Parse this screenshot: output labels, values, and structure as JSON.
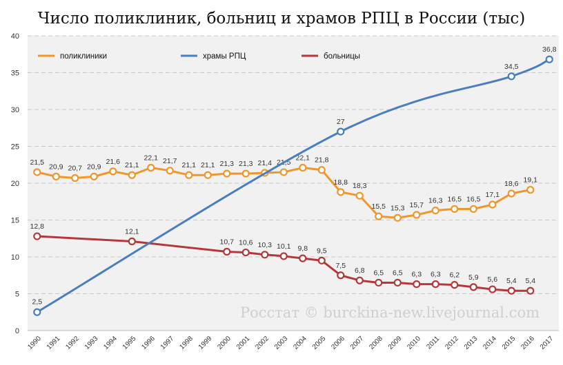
{
  "chart_data": {
    "type": "line",
    "title": "Число поликлиник, больниц и храмов РПЦ в России (тыс)",
    "watermark": "Росстат © burckina-new.livejournal.com",
    "ylim": [
      0,
      40
    ],
    "yticks": [
      "0",
      "5",
      "10",
      "15",
      "20",
      "25",
      "30",
      "35",
      "40"
    ],
    "grid": true,
    "legend_position": "top",
    "categories": [
      "1990",
      "1991",
      "1992",
      "1993",
      "1994",
      "1995",
      "1996",
      "1997",
      "1998",
      "1999",
      "2000",
      "2001",
      "2002",
      "2003",
      "2004",
      "2005",
      "2006",
      "2007",
      "2008",
      "2009",
      "2010",
      "2011",
      "2012",
      "2013",
      "2014",
      "2015",
      "2016",
      "2017"
    ],
    "series": [
      {
        "name": "поликлиники",
        "color": "#f0962a",
        "x": [
          "1990",
          "1991",
          "1992",
          "1993",
          "1994",
          "1995",
          "1996",
          "1997",
          "1998",
          "1999",
          "2000",
          "2001",
          "2002",
          "2003",
          "2004",
          "2005",
          "2006",
          "2007",
          "2008",
          "2009",
          "2010",
          "2011",
          "2012",
          "2013",
          "2014",
          "2015",
          "2016"
        ],
        "values": [
          21.5,
          20.9,
          20.7,
          20.9,
          21.6,
          21.1,
          22.1,
          21.7,
          21.1,
          21.1,
          21.3,
          21.3,
          21.4,
          21.5,
          22.1,
          21.8,
          18.8,
          18.3,
          15.5,
          15.3,
          15.7,
          16.3,
          16.5,
          16.5,
          17.1,
          18.6,
          19.1
        ],
        "labels": [
          "21,5",
          "20,9",
          "20,7",
          "20,9",
          "21,6",
          "21,1",
          "22,1",
          "21,7",
          "21,1",
          "21,1",
          "21,3",
          "21,3",
          "21,4",
          "21,5",
          "22,1",
          "21,8",
          "18,8",
          "18,3",
          "15,5",
          "15,3",
          "15,7",
          "16,3",
          "16,5",
          "16,5",
          "17,1",
          "18,6",
          "19,1"
        ]
      },
      {
        "name": "храмы РПЦ",
        "color": "#4a7ebf",
        "smooth": true,
        "x": [
          "1990",
          "2006",
          "2015",
          "2017"
        ],
        "values": [
          2.5,
          27,
          34.5,
          36.8
        ],
        "labels": [
          "2,5",
          "27",
          "34,5",
          "36,8"
        ]
      },
      {
        "name": "больницы",
        "color": "#b5373a",
        "x": [
          "1990",
          "1995",
          "2000",
          "2001",
          "2002",
          "2003",
          "2004",
          "2005",
          "2006",
          "2007",
          "2008",
          "2009",
          "2010",
          "2011",
          "2012",
          "2013",
          "2014",
          "2015",
          "2016"
        ],
        "values": [
          12.8,
          12.1,
          10.7,
          10.6,
          10.3,
          10.1,
          9.8,
          9.5,
          7.5,
          6.8,
          6.5,
          6.5,
          6.3,
          6.3,
          6.2,
          5.9,
          5.6,
          5.4,
          5.4
        ],
        "labels": [
          "12,8",
          "12,1",
          "10,7",
          "10,6",
          "10,3",
          "10,1",
          "9,8",
          "9,5",
          "7,5",
          "6,8",
          "6,5",
          "6,5",
          "6,3",
          "6,3",
          "6,2",
          "5,9",
          "5,6",
          "5,4",
          "5,4"
        ]
      }
    ]
  }
}
